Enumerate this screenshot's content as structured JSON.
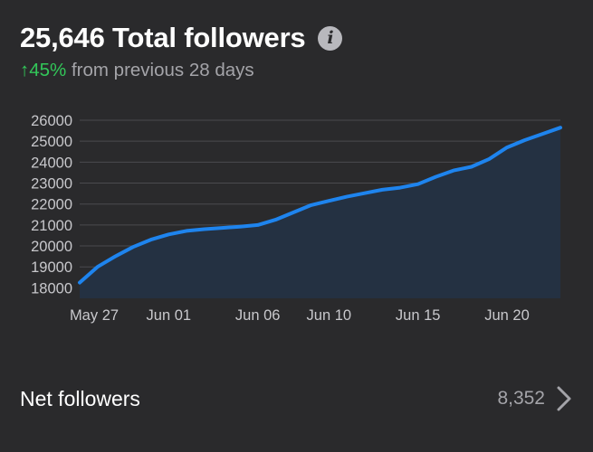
{
  "header": {
    "title": "25,646 Total followers",
    "info_icon": "info-icon",
    "change_arrow": "↑",
    "change_percent": "45%",
    "change_text": "from previous 28 days",
    "change_color": "#32c759"
  },
  "chart_data": {
    "type": "area",
    "title": "",
    "xlabel": "",
    "ylabel": "",
    "ylim": [
      17500,
      26000
    ],
    "yticks": [
      18000,
      19000,
      20000,
      21000,
      22000,
      23000,
      24000,
      25000,
      26000
    ],
    "ytick_labels": [
      "18000",
      "19000",
      "20000",
      "21000",
      "22000",
      "23000",
      "24000",
      "25000",
      "26000"
    ],
    "x_labels": [
      "May 27",
      "Jun 01",
      "Jun 06",
      "Jun 10",
      "Jun 15",
      "Jun 20"
    ],
    "x_label_days": [
      0,
      5,
      10,
      14,
      19,
      24
    ],
    "x_days": [
      0,
      1,
      2,
      3,
      4,
      5,
      6,
      7,
      8,
      9,
      10,
      11,
      12,
      13,
      14,
      15,
      16,
      17,
      18,
      19,
      20,
      21,
      22,
      23,
      24,
      25,
      26,
      27
    ],
    "values": [
      18250,
      19000,
      19500,
      19950,
      20300,
      20550,
      20720,
      20800,
      20860,
      20920,
      21000,
      21250,
      21600,
      21950,
      22150,
      22350,
      22520,
      22680,
      22780,
      22950,
      23300,
      23600,
      23780,
      24150,
      24700,
      25050,
      25350,
      25646
    ],
    "line_color": "#1e84ee",
    "fill_color": "#243142",
    "grid": true
  },
  "footer": {
    "net_label": "Net followers",
    "net_value": "8,352",
    "chevron_icon": "chevron-right-icon"
  }
}
